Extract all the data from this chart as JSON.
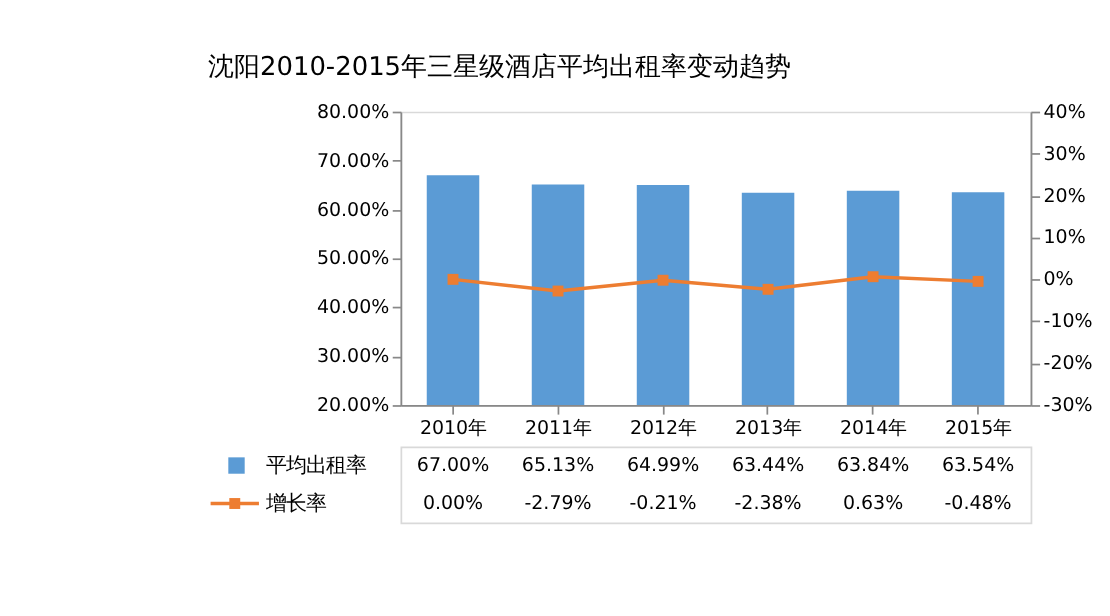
{
  "chart_data": {
    "type": "bar",
    "title": "沈阳2010-2015年三星级酒店平均出租率变动趋势",
    "categories": [
      "2010年",
      "2011年",
      "2012年",
      "2013年",
      "2014年",
      "2015年"
    ],
    "series": [
      {
        "name": "平均出租率",
        "color": "#5b9bd5",
        "values": [
          67.0,
          65.13,
          64.99,
          63.44,
          63.84,
          63.54
        ],
        "value_labels": [
          "67.00%",
          "65.13%",
          "64.99%",
          "63.44%",
          "63.84%",
          "63.54%"
        ]
      },
      {
        "name": "增长率",
        "type": "line",
        "axis": "y2",
        "color": "#ed7d31",
        "marker": "square",
        "values": [
          0.0,
          -2.79,
          -0.21,
          -2.38,
          0.63,
          -0.48
        ],
        "value_labels": [
          "0.00%",
          "-2.79%",
          "-0.21%",
          "-2.38%",
          "0.63%",
          "-0.48%"
        ]
      }
    ],
    "ylim": [
      20,
      80
    ],
    "yticks": [
      {
        "value": 20,
        "label": "20.00%"
      },
      {
        "value": 30,
        "label": "30.00%"
      },
      {
        "value": 40,
        "label": "40.00%"
      },
      {
        "value": 50,
        "label": "50.00%"
      },
      {
        "value": 60,
        "label": "60.00%"
      },
      {
        "value": 70,
        "label": "70.00%"
      },
      {
        "value": 80,
        "label": "80.00%"
      }
    ],
    "y2lim": [
      -30,
      40
    ],
    "y2ticks": [
      {
        "value": -30,
        "label": "-30%"
      },
      {
        "value": -20,
        "label": "-20%"
      },
      {
        "value": -10,
        "label": "-10%"
      },
      {
        "value": 0,
        "label": "0%"
      },
      {
        "value": 10,
        "label": "10%"
      },
      {
        "value": 20,
        "label": "20%"
      },
      {
        "value": 30,
        "label": "30%"
      },
      {
        "value": 40,
        "label": "40%"
      }
    ],
    "grid": false,
    "legend": "bottom"
  }
}
